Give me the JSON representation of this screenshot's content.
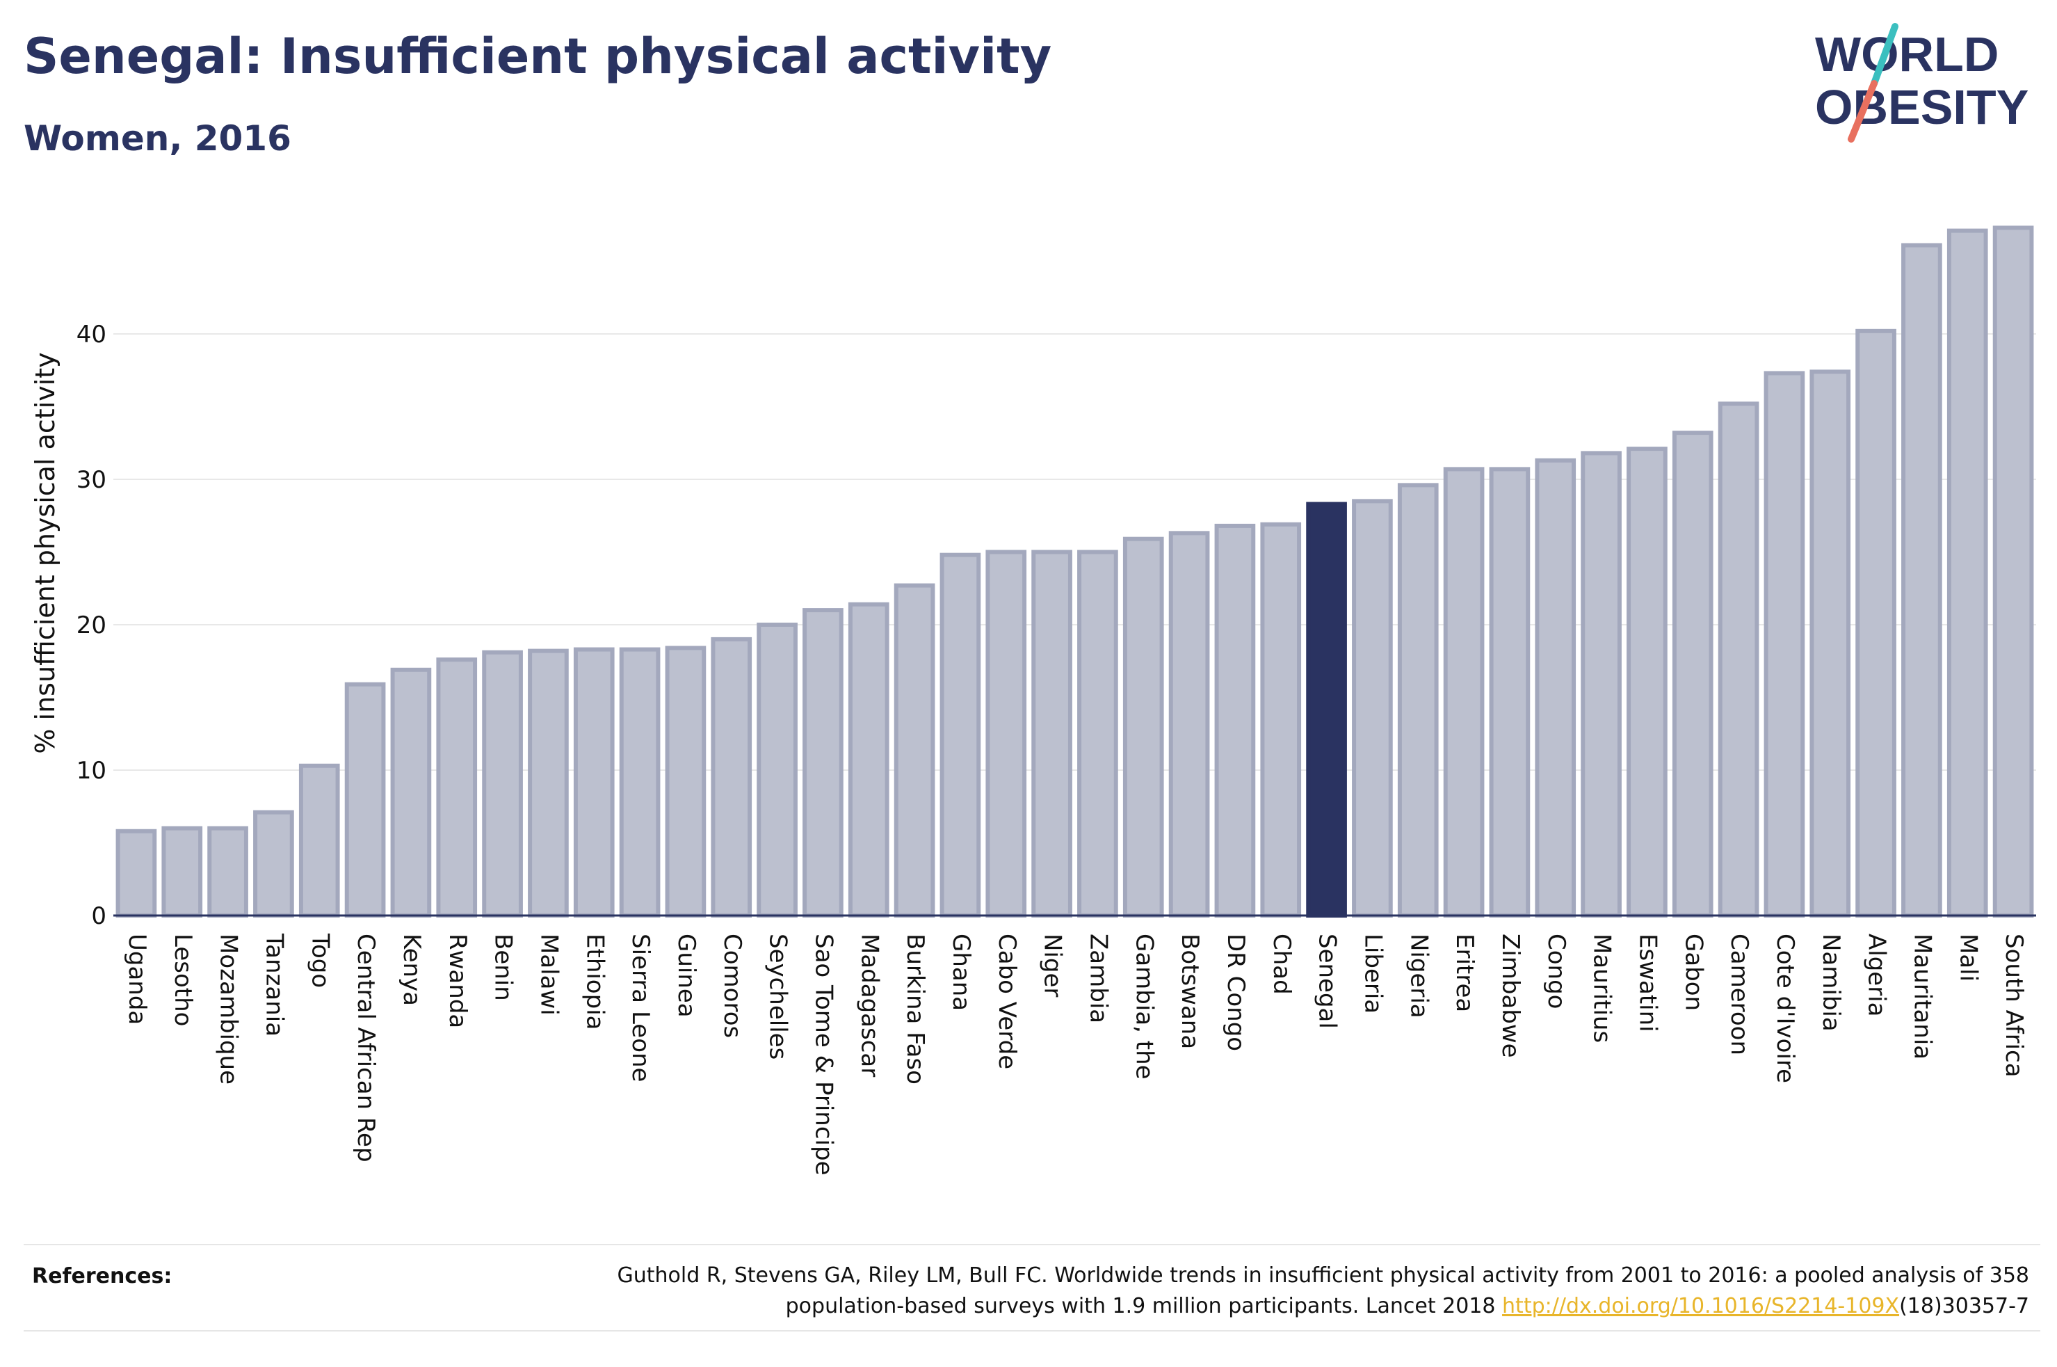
{
  "header": {
    "title": "Senegal: Insufficient physical activity",
    "subtitle": "Women, 2016"
  },
  "logo": {
    "line1": "WORLD",
    "line2": "OBESITY"
  },
  "references": {
    "label": "References:",
    "line1": "Guthold R, Stevens GA, Riley LM, Bull FC. Worldwide trends in insufficient physical activity from 2001 to 2016: a pooled analysis of 358",
    "line2_prefix": "population-based surveys with 1.9 million participants. Lancet 2018 ",
    "link": "http://dx.doi.org/10.1016/S2214-109X",
    "line2_suffix": "(18)30357-7"
  },
  "colors": {
    "bar": "#bcc0cf",
    "bar_border": "#a3a8bd",
    "highlight": "#2a3361",
    "grid": "#e8e8e8",
    "axis": "#2a3361",
    "logo_teal": "#3bbfbf",
    "logo_coral": "#e8705f"
  },
  "chart_data": {
    "type": "bar",
    "ylabel": "% insufficient physical activity",
    "xlabel": "",
    "ylim": [
      0,
      48
    ],
    "yticks": [
      0,
      10,
      20,
      30,
      40
    ],
    "grid": true,
    "highlight": "Senegal",
    "categories": [
      "Uganda",
      "Lesotho",
      "Mozambique",
      "Tanzania",
      "Togo",
      "Central African Rep",
      "Kenya",
      "Rwanda",
      "Benin",
      "Malawi",
      "Ethiopia",
      "Sierra Leone",
      "Guinea",
      "Comoros",
      "Seychelles",
      "Sao Tome & Principe",
      "Madagascar",
      "Burkina Faso",
      "Ghana",
      "Cabo Verde",
      "Niger",
      "Zambia",
      "Gambia, the",
      "Botswana",
      "DR Congo",
      "Chad",
      "Senegal",
      "Liberia",
      "Nigeria",
      "Eritrea",
      "Zimbabwe",
      "Congo",
      "Mauritius",
      "Eswatini",
      "Gabon",
      "Cameroon",
      "Cote d'Ivoire",
      "Namibia",
      "Algeria",
      "Mauritania",
      "Mali",
      "South Africa"
    ],
    "values": [
      5.8,
      6.0,
      6.0,
      7.1,
      10.3,
      15.9,
      16.9,
      17.6,
      18.1,
      18.2,
      18.3,
      18.3,
      18.4,
      19.0,
      20.0,
      21.0,
      21.4,
      22.7,
      24.8,
      25.0,
      25.0,
      25.0,
      25.9,
      26.3,
      26.8,
      26.9,
      28.3,
      28.5,
      29.6,
      30.7,
      30.7,
      31.3,
      31.8,
      32.1,
      33.2,
      35.2,
      37.3,
      37.4,
      40.2,
      46.1,
      47.1,
      47.3
    ]
  }
}
